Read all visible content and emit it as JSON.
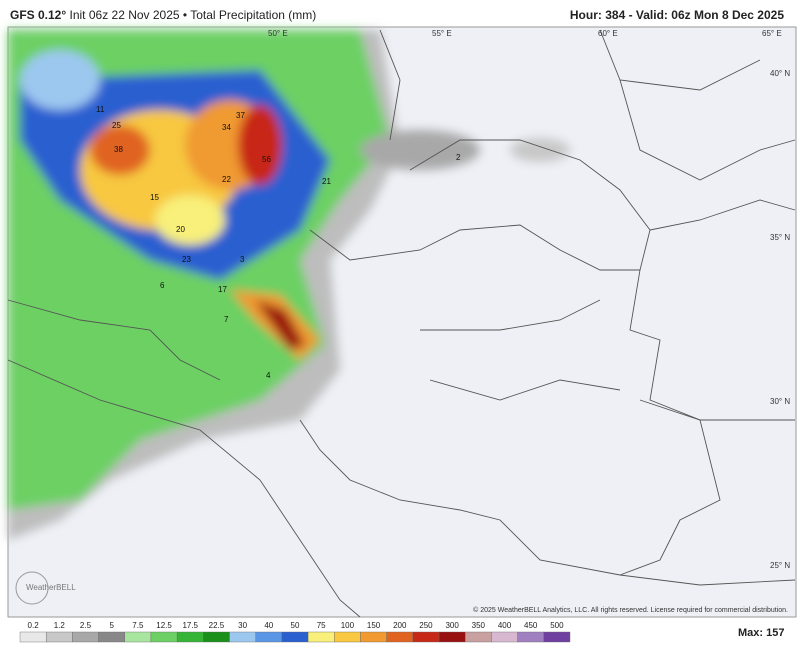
{
  "header": {
    "model": "GFS 0.12°",
    "run": "Init 06z 22 Nov 2025 • Total Precipitation (mm)",
    "hour_label": "Hour: 384 - Valid:",
    "valid": "06z Mon 8 Dec 2025"
  },
  "map": {
    "longitudes": [
      "50° E",
      "55° E",
      "60° E",
      "65° E"
    ],
    "latitudes": [
      "40° N",
      "35° N",
      "30° N",
      "25° N"
    ],
    "point_values": [
      "37",
      "34",
      "56",
      "38",
      "25",
      "22",
      "21",
      "15",
      "20",
      "23",
      "3",
      "17",
      "7",
      "4",
      "2",
      "6",
      "11"
    ],
    "logo": "WeatherBELL",
    "copyright": "© 2025 WeatherBELL Analytics, LLC. All rights reserved. License required for commercial distribution."
  },
  "colorbar": {
    "labels": [
      "0.2",
      "1.2",
      "2.5",
      "5",
      "7.5",
      "12.5",
      "17.5",
      "22.5",
      "30",
      "40",
      "50",
      "75",
      "100",
      "150",
      "200",
      "250",
      "300",
      "350",
      "400",
      "450",
      "500"
    ],
    "colors": [
      "#e8e8e8",
      "#c8c8c8",
      "#a8a8a8",
      "#888888",
      "#a8e6a0",
      "#6cd064",
      "#36b436",
      "#1a8f1a",
      "#9cc8f0",
      "#5a96e6",
      "#2a5fd0",
      "#f8f07a",
      "#f8c840",
      "#f09a30",
      "#e06420",
      "#c82818",
      "#981010",
      "#c8a0a0",
      "#d8b8d0",
      "#a080c0",
      "#7040a0"
    ],
    "max_label": "Max: 157"
  }
}
